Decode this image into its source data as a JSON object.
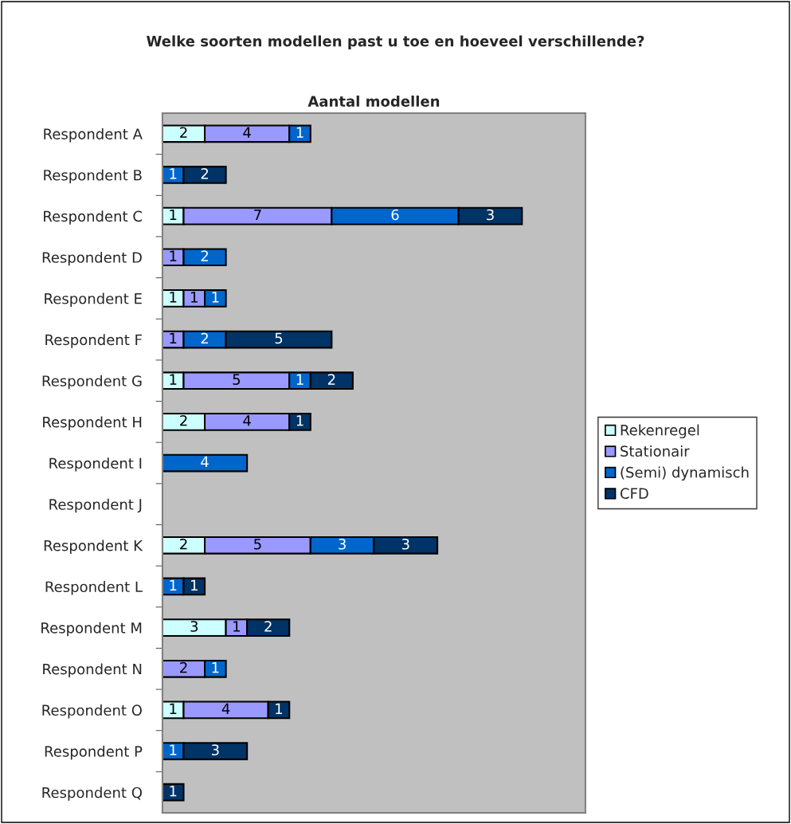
{
  "chart_data": {
    "type": "bar",
    "orientation": "horizontal",
    "stacked": true,
    "title": "Welke soorten modellen past u toe en hoeveel verschillende?",
    "subtitle": "Aantal modellen",
    "categories": [
      "Respondent A",
      "Respondent B",
      "Respondent C",
      "Respondent D",
      "Respondent E",
      "Respondent F",
      "Respondent G",
      "Respondent H",
      "Respondent I",
      "Respondent J",
      "Respondent K",
      "Respondent L",
      "Respondent M",
      "Respondent N",
      "Respondent O",
      "Respondent P",
      "Respondent Q"
    ],
    "series": [
      {
        "name": "Rekenregel",
        "color": "#ccffff",
        "values": [
          2,
          null,
          1,
          null,
          1,
          null,
          1,
          2,
          null,
          null,
          2,
          null,
          3,
          null,
          1,
          null,
          null
        ]
      },
      {
        "name": "Stationair",
        "color": "#9999ff",
        "values": [
          4,
          null,
          7,
          1,
          1,
          1,
          5,
          4,
          null,
          null,
          5,
          null,
          1,
          2,
          4,
          null,
          null
        ]
      },
      {
        "name": "(Semi) dynamisch",
        "color": "#0066cc",
        "values": [
          1,
          1,
          6,
          2,
          1,
          2,
          1,
          null,
          4,
          null,
          3,
          1,
          null,
          1,
          null,
          1,
          null
        ]
      },
      {
        "name": "CFD",
        "color": "#003366",
        "values": [
          null,
          2,
          3,
          null,
          null,
          5,
          2,
          1,
          null,
          null,
          3,
          1,
          2,
          null,
          1,
          3,
          1
        ]
      }
    ],
    "xlim": [
      0,
      20
    ],
    "tick_labels": "y",
    "data_labels": true,
    "legend": "right",
    "grid": false
  }
}
